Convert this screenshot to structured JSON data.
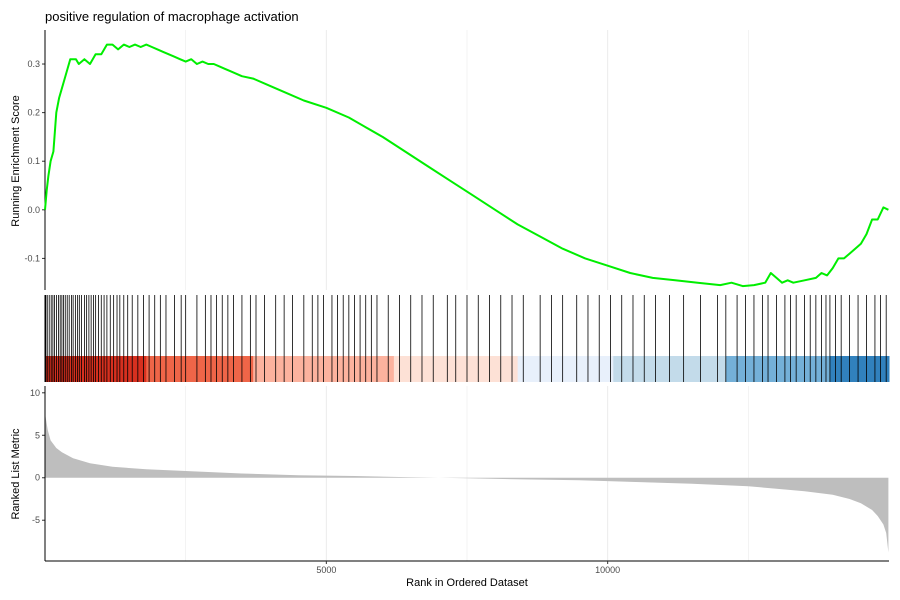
{
  "chart_data": {
    "type": "line",
    "title": "positive regulation of macrophage activation",
    "xlabel": "Rank in Ordered Dataset",
    "x_ticks": [
      5000,
      10000
    ],
    "xlim": [
      0,
      15000
    ],
    "colors": {
      "running_score": "#00ee00",
      "hit_line": "#000000",
      "metric_fill": "#bebebe",
      "grid": "#ebebeb",
      "axis": "#000000"
    },
    "panels": [
      {
        "name": "running-score",
        "ylabel": "Running Enrichment Score",
        "ylim": [
          -0.165,
          0.37
        ],
        "y_ticks": [
          -0.1,
          0.0,
          0.1,
          0.2,
          0.3
        ],
        "y_tick_labels": [
          "-0.1",
          "0.0",
          "0.1",
          "0.2",
          "0.3"
        ],
        "series": [
          {
            "x": [
              0,
              30,
              60,
              100,
              150,
              200,
              250,
              300,
              350,
              400,
              450,
              500,
              550,
              600,
              700,
              800,
              900,
              1000,
              1100,
              1200,
              1300,
              1400,
              1500,
              1600,
              1700,
              1800,
              1900,
              2000,
              2100,
              2200,
              2300,
              2400,
              2500,
              2600,
              2700,
              2800,
              2900,
              3000,
              3100,
              3200,
              3300,
              3500,
              3700,
              4000,
              4300,
              4600,
              5000,
              5400,
              5700,
              6000,
              6400,
              6800,
              7200,
              7600,
              8000,
              8400,
              8800,
              9200,
              9600,
              10000,
              10400,
              10800,
              11200,
              11600,
              12000,
              12200,
              12400,
              12600,
              12800,
              12900,
              13000,
              13100,
              13200,
              13300,
              13500,
              13700,
              13800,
              13900,
              14000,
              14100,
              14200,
              14300,
              14400,
              14500,
              14600,
              14700,
              14800,
              14900,
              14990
            ],
            "y": [
              0.0,
              0.04,
              0.07,
              0.1,
              0.12,
              0.2,
              0.23,
              0.25,
              0.27,
              0.29,
              0.31,
              0.31,
              0.31,
              0.3,
              0.31,
              0.3,
              0.32,
              0.32,
              0.34,
              0.34,
              0.33,
              0.34,
              0.335,
              0.34,
              0.335,
              0.34,
              0.335,
              0.33,
              0.325,
              0.32,
              0.315,
              0.31,
              0.305,
              0.31,
              0.3,
              0.305,
              0.3,
              0.3,
              0.295,
              0.29,
              0.285,
              0.275,
              0.27,
              0.255,
              0.24,
              0.225,
              0.21,
              0.19,
              0.17,
              0.15,
              0.12,
              0.09,
              0.06,
              0.03,
              0.0,
              -0.03,
              -0.055,
              -0.08,
              -0.1,
              -0.115,
              -0.13,
              -0.14,
              -0.145,
              -0.15,
              -0.155,
              -0.15,
              -0.157,
              -0.155,
              -0.15,
              -0.13,
              -0.14,
              -0.15,
              -0.145,
              -0.15,
              -0.145,
              -0.14,
              -0.13,
              -0.135,
              -0.12,
              -0.1,
              -0.1,
              -0.09,
              -0.08,
              -0.07,
              -0.05,
              -0.02,
              -0.02,
              0.005,
              0.0
            ]
          }
        ]
      },
      {
        "name": "gene-hits",
        "hits": [
          15,
          40,
          75,
          110,
          140,
          170,
          205,
          240,
          270,
          300,
          330,
          360,
          395,
          430,
          470,
          500,
          540,
          580,
          610,
          650,
          700,
          740,
          780,
          820,
          860,
          900,
          950,
          1000,
          1050,
          1100,
          1160,
          1220,
          1280,
          1330,
          1400,
          1470,
          1550,
          1650,
          1750,
          1850,
          1950,
          2050,
          2150,
          2300,
          2420,
          2500,
          2700,
          2850,
          2950,
          3050,
          3150,
          3250,
          3350,
          3500,
          3650,
          3750,
          3900,
          4100,
          4250,
          4400,
          4600,
          4750,
          4850,
          4950,
          5100,
          5200,
          5300,
          5400,
          5500,
          5600,
          5700,
          5800,
          5900,
          6100,
          6300,
          6500,
          6700,
          6900,
          7150,
          7300,
          7500,
          7700,
          7900,
          8100,
          8300,
          8500,
          8800,
          9000,
          9200,
          9450,
          9650,
          9850,
          10050,
          10250,
          10450,
          10650,
          10850,
          11100,
          11350,
          11650,
          11950,
          12100,
          12300,
          12450,
          12600,
          12750,
          12850,
          13000,
          13150,
          13250,
          13350,
          13500,
          13600,
          13700,
          13800,
          13880,
          13950,
          14050,
          14150,
          14300,
          14450,
          14600,
          14750,
          14850,
          14950
        ],
        "colorbar": [
          {
            "from": 0,
            "to": 1800,
            "color": "#d7301f"
          },
          {
            "from": 1800,
            "to": 3700,
            "color": "#ef6548"
          },
          {
            "from": 3700,
            "to": 6200,
            "color": "#fcb29e"
          },
          {
            "from": 6200,
            "to": 8400,
            "color": "#fde1d6"
          },
          {
            "from": 8400,
            "to": 10100,
            "color": "#e8f0fb"
          },
          {
            "from": 10100,
            "to": 12100,
            "color": "#c3dbea"
          },
          {
            "from": 12100,
            "to": 13950,
            "color": "#74b0d8"
          },
          {
            "from": 13950,
            "to": 15000,
            "color": "#3181bd"
          }
        ]
      },
      {
        "name": "ranked-metric",
        "ylabel": "Ranked List Metric",
        "ylim": [
          -9.8,
          10.8
        ],
        "y_ticks": [
          -5,
          0,
          5,
          10
        ],
        "y_tick_labels": [
          "-5",
          "0",
          "5",
          "10"
        ],
        "series": [
          {
            "x": [
              0,
              20,
              50,
              100,
              200,
              300,
              500,
              800,
              1200,
              1800,
              2500,
              3500,
              4500,
              5500,
              6500,
              7500,
              8500,
              9500,
              10500,
              11500,
              12500,
              13000,
              13500,
              14000,
              14300,
              14500,
              14700,
              14800,
              14900,
              14950,
              14990
            ],
            "y": [
              7.6,
              6.8,
              5.6,
              4.4,
              3.5,
              3.0,
              2.3,
              1.7,
              1.3,
              1.0,
              0.8,
              0.5,
              0.3,
              0.2,
              0.05,
              -0.05,
              -0.2,
              -0.3,
              -0.5,
              -0.7,
              -1.0,
              -1.3,
              -1.6,
              -2.0,
              -2.5,
              -3.0,
              -3.8,
              -4.5,
              -5.5,
              -6.5,
              -8.8
            ]
          }
        ]
      }
    ]
  }
}
